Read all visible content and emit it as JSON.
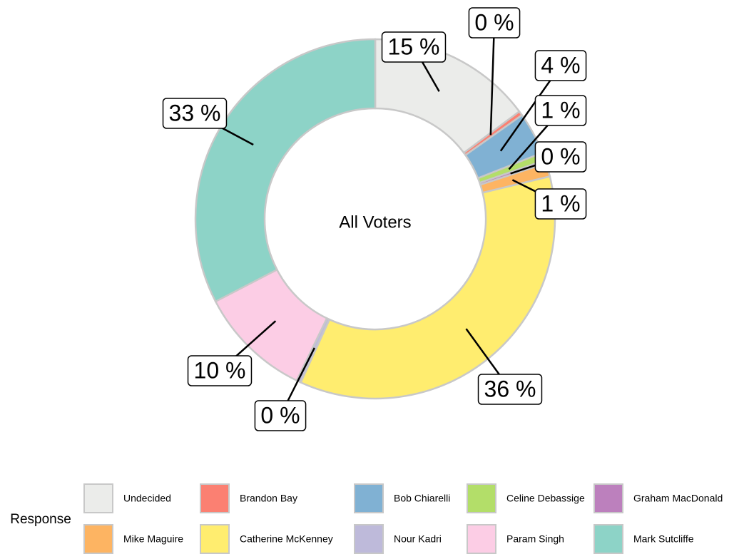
{
  "chart_data": {
    "type": "donut",
    "center_label": "All Voters",
    "legend_title": "Response",
    "categories": [
      "Undecided",
      "Brandon Bay",
      "Bob Chiarelli",
      "Celine Debassige",
      "Graham MacDonald",
      "Mike Maguire",
      "Catherine McKenney",
      "Nour Kadri",
      "Param Singh",
      "Mark Sutcliffe"
    ],
    "values": [
      14.8,
      0.4,
      3.8,
      0.7,
      0.3,
      1.2,
      35.6,
      0.4,
      10.2,
      32.6
    ],
    "value_labels": [
      "15 %",
      "0 %",
      "4 %",
      "1 %",
      "0 %",
      "1 %",
      "36 %",
      "0 %",
      "10 %",
      "33 %"
    ],
    "colors": [
      "#ebecea",
      "#fb8072",
      "#80b1d3",
      "#b3de69",
      "#bc80bd",
      "#fdb462",
      "#ffed6f",
      "#bebada",
      "#fccde5",
      "#8dd3c7"
    ]
  }
}
